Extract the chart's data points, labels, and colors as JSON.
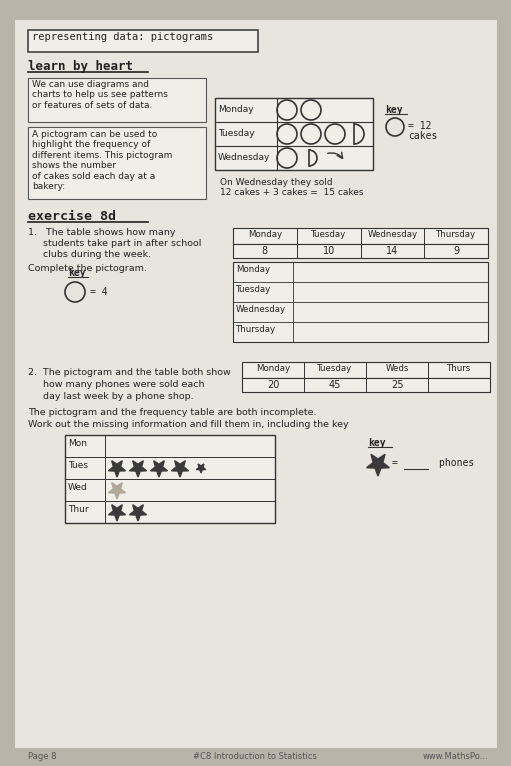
{
  "bg_color": "#b8b4aa",
  "paper_color": "#e8e5de",
  "title": "representing data: pictograms",
  "subtitle": "learn by heart",
  "text1": "We can use diagrams and\ncharts to help us see patterns\nor features of sets of data.",
  "text2": "A pictogram can be used to\nhighlight the frequency of\ndifferent items. This pictogram\nshows the number\nof cakes sold each day at a\nbakery:",
  "cake_days": [
    "Monday",
    "Tuesday",
    "Wednesday"
  ],
  "wednesday_note": "On Wednesday they sold\n12 cakes + 3 cakes =  15 cakes",
  "exercise_title": "exercise 8d",
  "q1_line1": "1.   The table shows how many",
  "q1_line2": "     students take part in after school",
  "q1_line3": "     clubs during the week.",
  "q1_complete": "Complete the pictogram.",
  "q1_table_headers": [
    "Monday",
    "Tuesday",
    "Wednesday",
    "Thursday"
  ],
  "q1_table_values": [
    "8",
    "10",
    "14",
    "9"
  ],
  "q1_pictogram_days": [
    "Monday",
    "Tuesday",
    "Wednesday",
    "Thursday"
  ],
  "q2_line1": "2.  The pictogram and the table both show",
  "q2_line2": "     how many phones were sold each",
  "q2_line3": "     day last week by a phone shop.",
  "q2_table_headers": [
    "Monday",
    "Tuesday",
    "Weds",
    "Thurs"
  ],
  "q2_table_values": [
    "20",
    "45",
    "25",
    ""
  ],
  "q2_incomplete": "The pictogram and the frequency table are both incomplete.",
  "q2_work": "Work out the missing information and fill them in, including the key",
  "q2_pictogram_days": [
    "Mon",
    "Tues",
    "Wed",
    "Thur"
  ],
  "footer_left": "Page 8",
  "footer_center": "#C8 Introduction to Statistics",
  "footer_right": "www.MathsPo..."
}
